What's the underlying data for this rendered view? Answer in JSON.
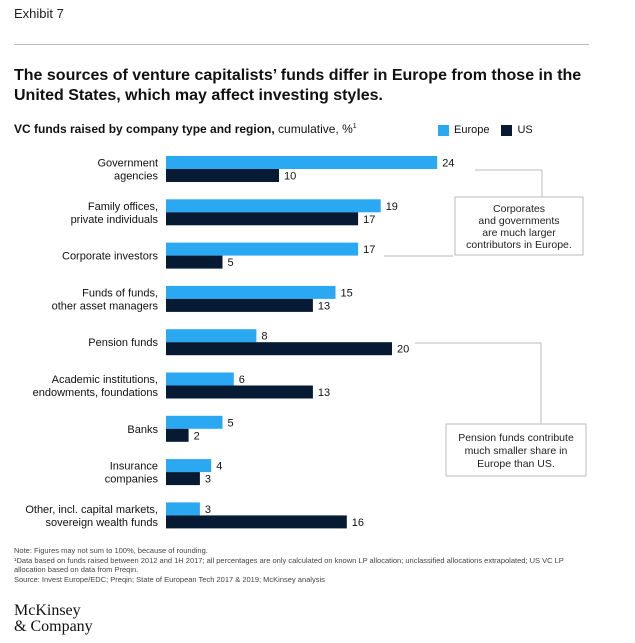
{
  "exhibit": "Exhibit 7",
  "headline": "The sources of venture capitalists’ funds differ in Europe from those in the United States, which may affect investing styles.",
  "subtitle_bold": "VC funds raised by company type and region,",
  "subtitle_rest": " cumulative, %",
  "subtitle_sup": "1",
  "colors": {
    "europe": "#2aa8f2",
    "us": "#061a33",
    "connector": "#bbbbbb"
  },
  "chart_data": {
    "type": "bar",
    "orientation": "horizontal",
    "xlim": [
      0,
      24
    ],
    "categories": [
      [
        "Government",
        "agencies"
      ],
      [
        "Family offices,",
        "private individuals"
      ],
      [
        "Corporate investors"
      ],
      [
        "Funds of funds,",
        "other asset managers"
      ],
      [
        "Pension funds"
      ],
      [
        "Academic institutions,",
        "endowments, foundations"
      ],
      [
        "Banks"
      ],
      [
        "Insurance",
        "companies"
      ],
      [
        "Other, incl. capital markets,",
        "sovereign wealth funds"
      ]
    ],
    "series": [
      {
        "name": "Europe",
        "values": [
          24,
          19,
          17,
          15,
          8,
          6,
          5,
          4,
          3
        ]
      },
      {
        "name": "US",
        "values": [
          10,
          17,
          5,
          13,
          20,
          13,
          2,
          3,
          16
        ]
      }
    ],
    "annotations": [
      {
        "lines": [
          "Corporates",
          "and governments",
          "are much larger",
          "contributors in Europe."
        ]
      },
      {
        "lines": [
          "Pension funds contribute",
          "much smaller share in",
          "Europe than US."
        ]
      }
    ]
  },
  "notes": [
    "Note: Figures may not sum to 100%, because of rounding.",
    "¹Data based on funds raised between 2012 and 1H 2017; all percentages are only calculated on known LP allocation; unclassified allocations extrapolated; US VC LP allocation based on data from Preqin.",
    "Source: Invest Europe/EDC; Preqin; State of European Tech 2017 & 2019; McKinsey analysis"
  ],
  "logo_lines": [
    "McKinsey",
    "& Company"
  ]
}
